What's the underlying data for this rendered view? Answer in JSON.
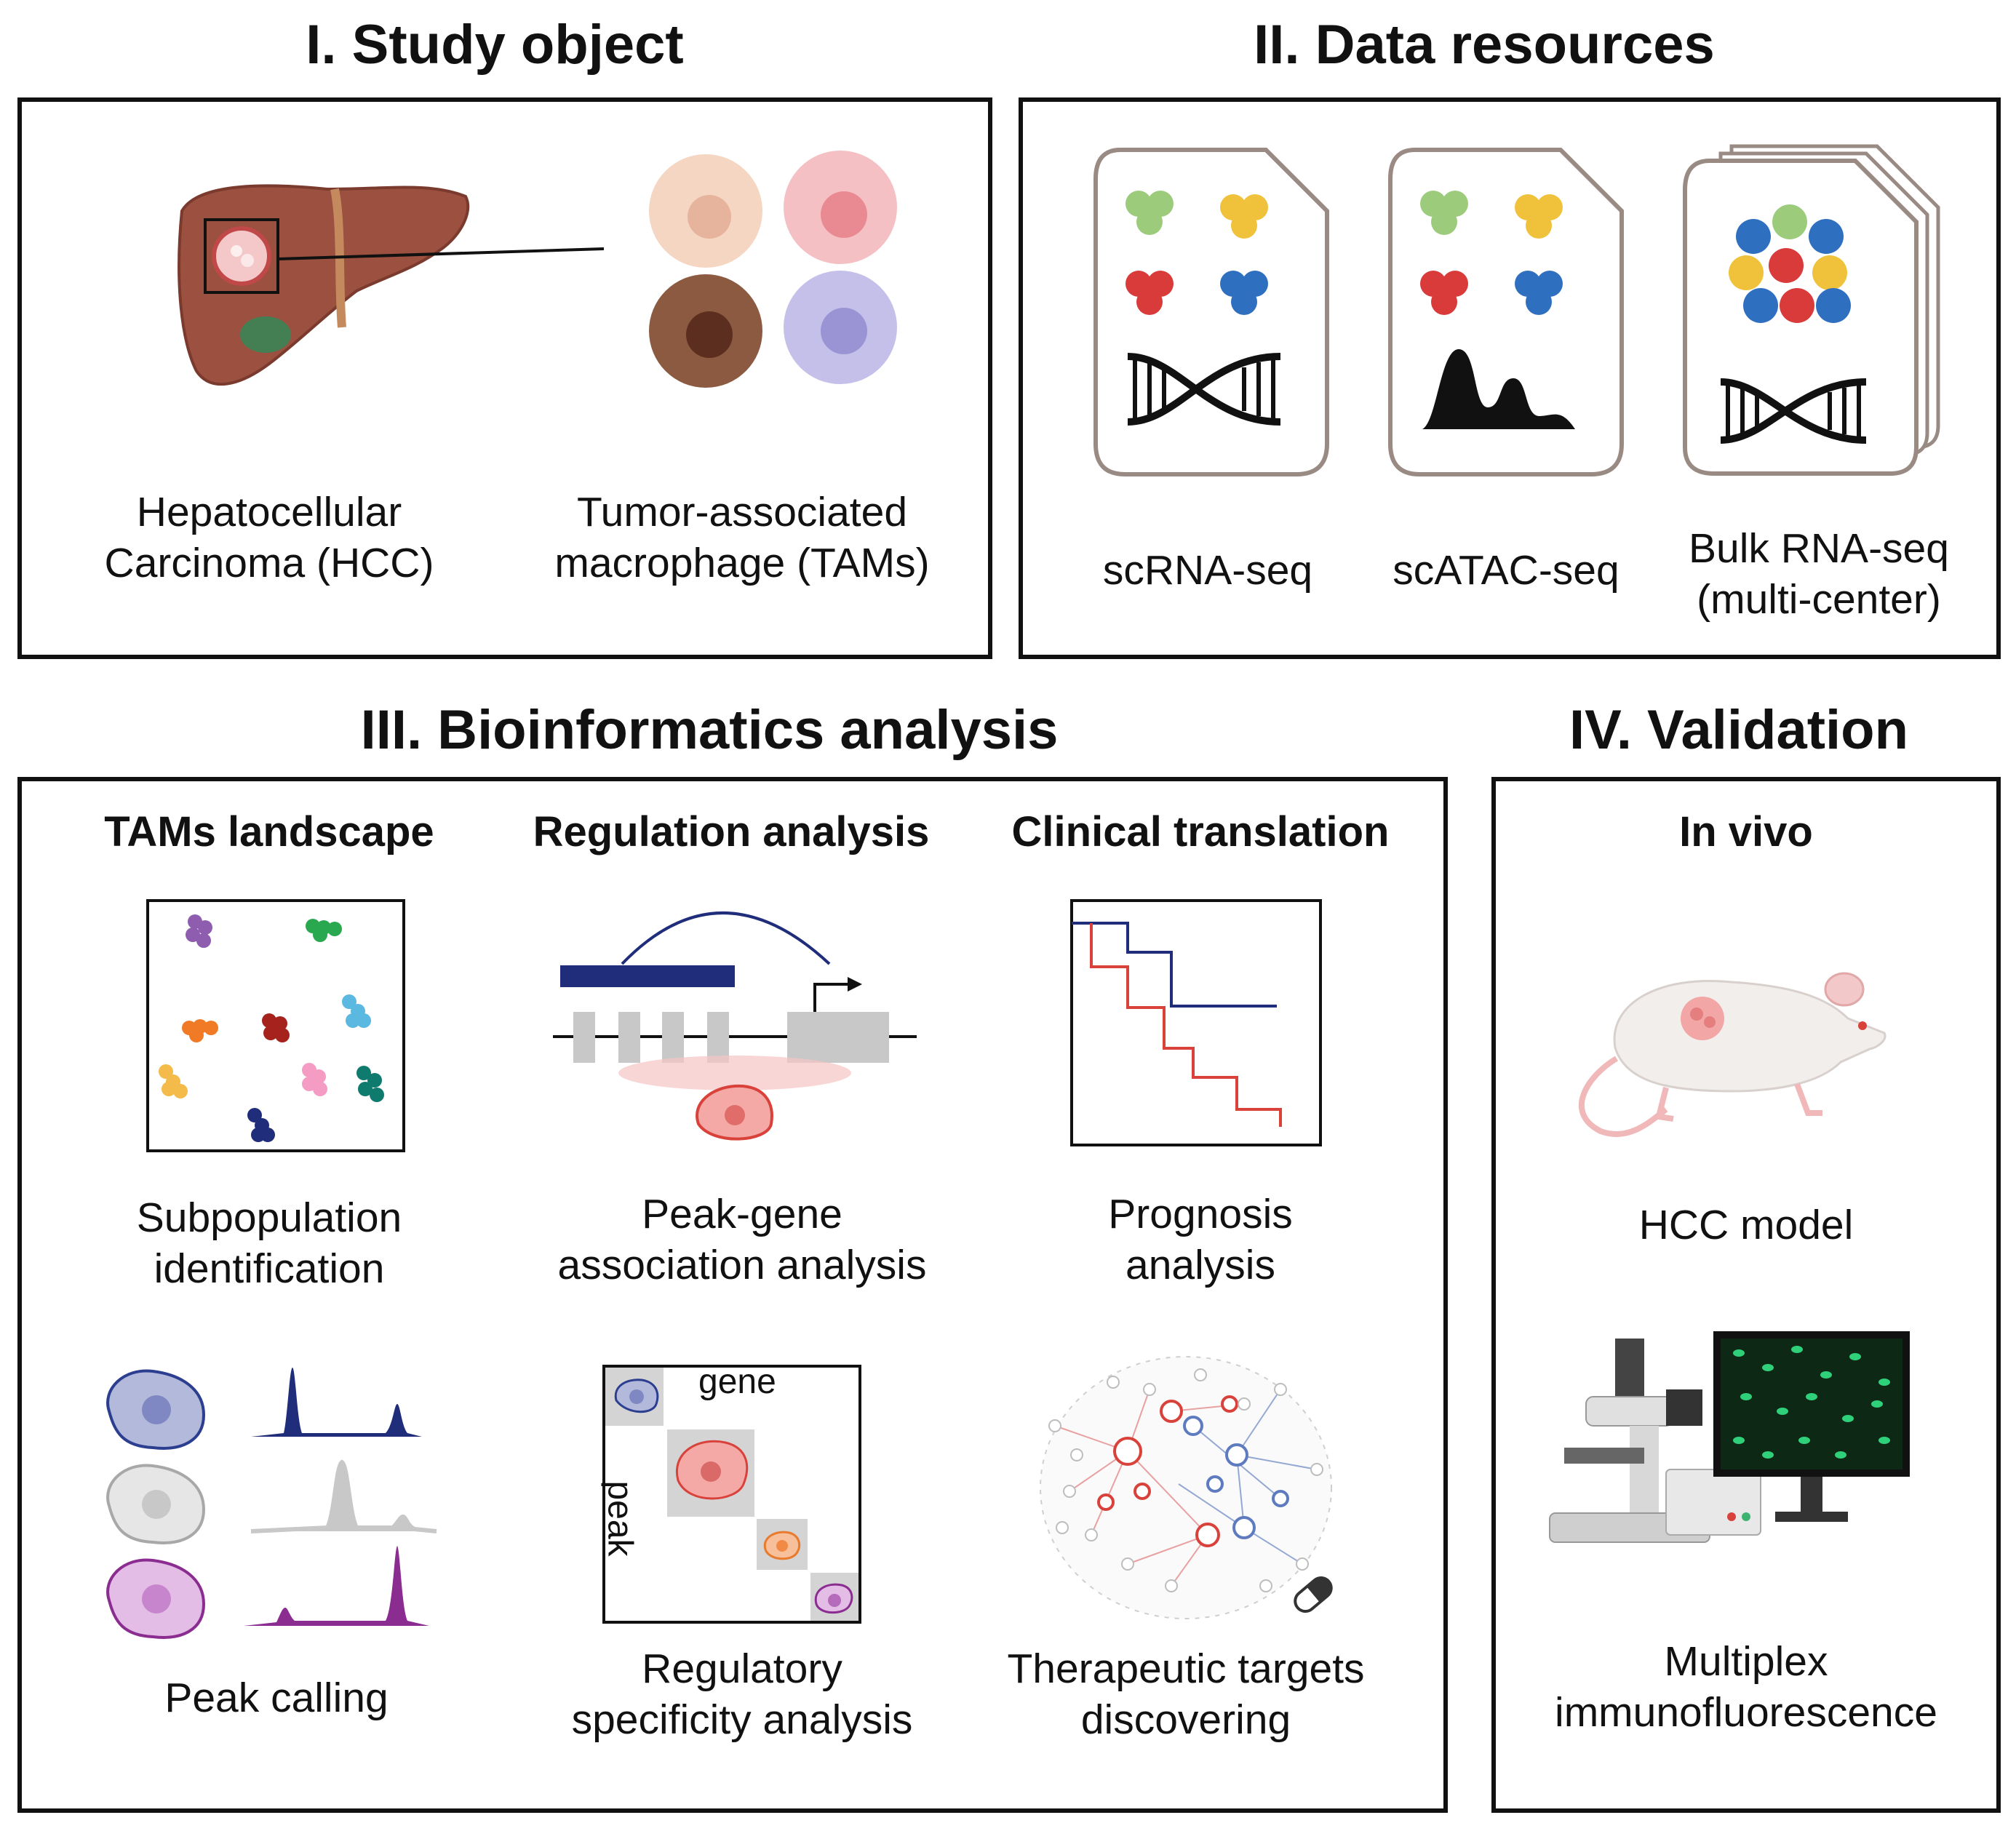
{
  "sections": {
    "study_object": {
      "title": "I. Study object",
      "hcc_label": [
        "Hepatocellular",
        "Carcinoma (HCC)"
      ],
      "tam_label": [
        "Tumor-associated",
        "macrophage (TAMs)"
      ]
    },
    "data_resources": {
      "title": "II. Data resources",
      "items": [
        {
          "label": [
            "scRNA-seq"
          ]
        },
        {
          "label": [
            "scATAC-seq"
          ]
        },
        {
          "label": [
            "Bulk RNA-seq",
            "(multi-center)"
          ]
        }
      ]
    },
    "bioinformatics": {
      "title": "III. Bioinformatics analysis",
      "columns": [
        {
          "title": "TAMs landscape",
          "top_caption": [
            "Subpopulation",
            "identification"
          ],
          "bottom_caption": [
            "Peak calling"
          ]
        },
        {
          "title": "Regulation analysis",
          "top_caption": [
            "Peak-gene",
            "association analysis"
          ],
          "bottom_caption": [
            "Regulatory",
            "specificity analysis"
          ],
          "matrix_col_label": "gene",
          "matrix_row_label": "peak"
        },
        {
          "title": "Clinical translation",
          "top_caption": [
            "Prognosis",
            "analysis"
          ],
          "bottom_caption": [
            "Therapeutic targets",
            "discovering"
          ]
        }
      ]
    },
    "validation": {
      "title": "IV. Validation",
      "subtitle": "In vivo",
      "top_caption": [
        "HCC model"
      ],
      "bottom_caption": [
        "Multiplex",
        "immunofluorescence"
      ]
    }
  },
  "colors": {
    "liver": "#9c5040",
    "navy": "#1f2d7a",
    "red": "#d9423b",
    "purple": "#8b2c91",
    "gray": "#c8c8c8"
  }
}
